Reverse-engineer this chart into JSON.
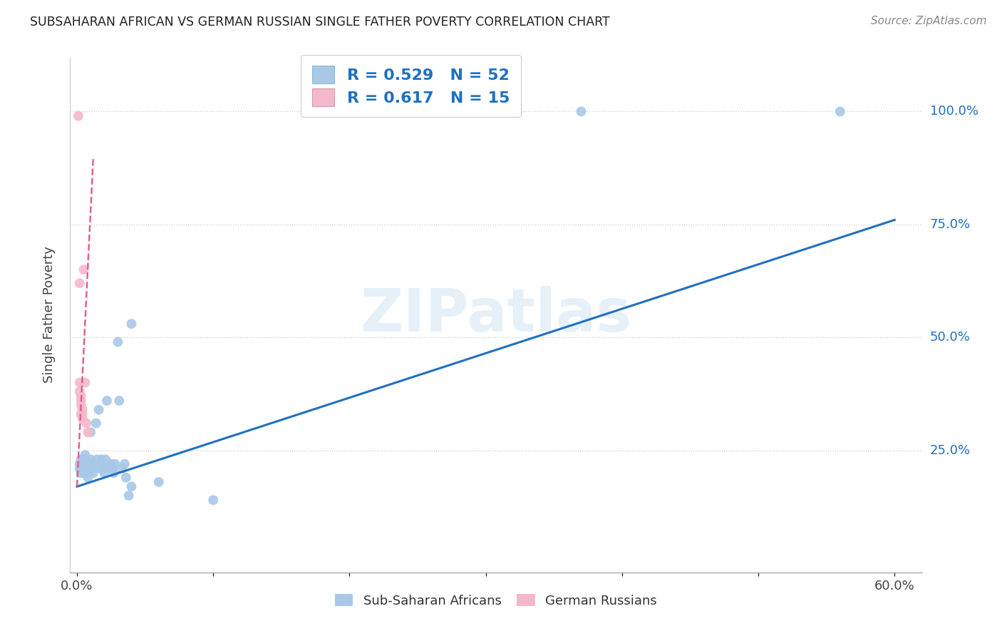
{
  "title": "SUBSAHARAN AFRICAN VS GERMAN RUSSIAN SINGLE FATHER POVERTY CORRELATION CHART",
  "source": "Source: ZipAtlas.com",
  "ylabel": "Single Father Poverty",
  "legend_blue_label": "Sub-Saharan Africans",
  "legend_pink_label": "German Russians",
  "R_blue": 0.529,
  "N_blue": 52,
  "R_pink": 0.617,
  "N_pink": 15,
  "blue_color": "#a8c8e8",
  "pink_color": "#f5b8ca",
  "blue_line_color": "#2070c0",
  "pink_line_color": "#e06090",
  "watermark": "ZIPatlas",
  "blue_scatter": [
    [
      0.002,
      0.22
    ],
    [
      0.002,
      0.21
    ],
    [
      0.003,
      0.2
    ],
    [
      0.003,
      0.22
    ],
    [
      0.003,
      0.23
    ],
    [
      0.004,
      0.21
    ],
    [
      0.004,
      0.22
    ],
    [
      0.004,
      0.2
    ],
    [
      0.005,
      0.23
    ],
    [
      0.005,
      0.21
    ],
    [
      0.006,
      0.22
    ],
    [
      0.006,
      0.24
    ],
    [
      0.006,
      0.23
    ],
    [
      0.007,
      0.22
    ],
    [
      0.007,
      0.21
    ],
    [
      0.008,
      0.19
    ],
    [
      0.008,
      0.2
    ],
    [
      0.009,
      0.22
    ],
    [
      0.009,
      0.21
    ],
    [
      0.01,
      0.29
    ],
    [
      0.01,
      0.23
    ],
    [
      0.011,
      0.21
    ],
    [
      0.012,
      0.2
    ],
    [
      0.013,
      0.22
    ],
    [
      0.014,
      0.31
    ],
    [
      0.015,
      0.23
    ],
    [
      0.016,
      0.34
    ],
    [
      0.017,
      0.21
    ],
    [
      0.018,
      0.23
    ],
    [
      0.018,
      0.22
    ],
    [
      0.019,
      0.21
    ],
    [
      0.02,
      0.2
    ],
    [
      0.021,
      0.23
    ],
    [
      0.022,
      0.36
    ],
    [
      0.023,
      0.22
    ],
    [
      0.024,
      0.21
    ],
    [
      0.025,
      0.22
    ],
    [
      0.026,
      0.21
    ],
    [
      0.027,
      0.2
    ],
    [
      0.028,
      0.22
    ],
    [
      0.03,
      0.49
    ],
    [
      0.031,
      0.36
    ],
    [
      0.033,
      0.21
    ],
    [
      0.035,
      0.22
    ],
    [
      0.036,
      0.19
    ],
    [
      0.038,
      0.15
    ],
    [
      0.04,
      0.17
    ],
    [
      0.04,
      0.53
    ],
    [
      0.06,
      0.18
    ],
    [
      0.1,
      0.14
    ],
    [
      0.37,
      1.0
    ],
    [
      0.56,
      1.0
    ]
  ],
  "pink_scatter": [
    [
      0.001,
      0.99
    ],
    [
      0.002,
      0.62
    ],
    [
      0.002,
      0.4
    ],
    [
      0.002,
      0.38
    ],
    [
      0.003,
      0.37
    ],
    [
      0.003,
      0.36
    ],
    [
      0.003,
      0.35
    ],
    [
      0.003,
      0.33
    ],
    [
      0.004,
      0.34
    ],
    [
      0.004,
      0.33
    ],
    [
      0.004,
      0.32
    ],
    [
      0.005,
      0.65
    ],
    [
      0.006,
      0.4
    ],
    [
      0.007,
      0.31
    ],
    [
      0.008,
      0.29
    ]
  ],
  "blue_trend_x": [
    0.0,
    0.6
  ],
  "blue_trend_y": [
    0.17,
    0.76
  ],
  "pink_trend_x": [
    0.0,
    0.012
  ],
  "pink_trend_y": [
    0.17,
    0.9
  ],
  "xlim": [
    -0.005,
    0.62
  ],
  "ylim": [
    -0.02,
    1.12
  ],
  "ytick_vals": [
    0.25,
    0.5,
    0.75,
    1.0
  ],
  "ytick_labels": [
    "25.0%",
    "50.0%",
    "75.0%",
    "100.0%"
  ],
  "xtick_vals": [
    0.0,
    0.1,
    0.2,
    0.3,
    0.4,
    0.5,
    0.6
  ],
  "xtick_show": {
    "0.0": "0.0%",
    "0.6": "60.0%"
  }
}
